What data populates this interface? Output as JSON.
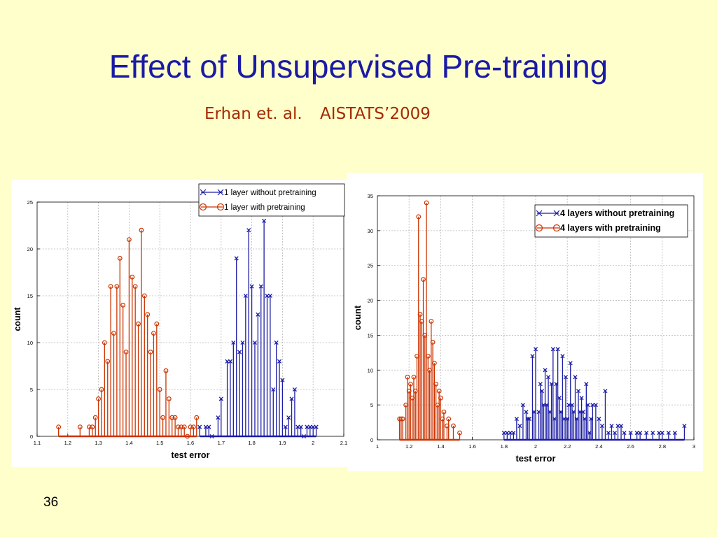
{
  "slide": {
    "title": "Effect of Unsupervised Pre-training",
    "subtitle_authors": "Erhan et. al.",
    "subtitle_venue": "AISTATS’2009",
    "page_number": "36"
  },
  "colors": {
    "blue": "#1c1ca6",
    "red": "#cc3300",
    "title": "#1a1aa6"
  },
  "chart_data": [
    {
      "type": "stem",
      "xlabel": "test error",
      "ylabel": "count",
      "xlim": [
        1.1,
        2.1
      ],
      "ylim": [
        0,
        25
      ],
      "xticks": [
        "1.1",
        "1.2",
        "1.3",
        "1.4",
        "1.5",
        "1.6",
        "1.7",
        "1.8",
        "1.9",
        "2",
        "2.1"
      ],
      "yticks": [
        "0",
        "5",
        "10",
        "15",
        "20",
        "25"
      ],
      "grid": true,
      "legend_position": "top-right",
      "series": [
        {
          "name": "1 layer without pretraining",
          "color": "blue",
          "marker": "x",
          "x": [
            1.63,
            1.65,
            1.66,
            1.67,
            1.69,
            1.7,
            1.72,
            1.73,
            1.74,
            1.75,
            1.76,
            1.77,
            1.78,
            1.79,
            1.8,
            1.81,
            1.82,
            1.83,
            1.84,
            1.85,
            1.86,
            1.87,
            1.88,
            1.89,
            1.9,
            1.91,
            1.92,
            1.93,
            1.94,
            1.95,
            1.96,
            1.97,
            1.98,
            1.99,
            2.0,
            2.01
          ],
          "y": [
            1,
            1,
            1,
            0,
            2,
            4,
            8,
            8,
            10,
            19,
            9,
            10,
            15,
            22,
            16,
            10,
            13,
            16,
            23,
            15,
            15,
            5,
            10,
            8,
            6,
            1,
            2,
            4,
            5,
            1,
            1,
            0,
            1,
            1,
            1,
            1
          ]
        },
        {
          "name": "1 layer with pretraining",
          "color": "red",
          "marker": "o",
          "x": [
            1.17,
            1.24,
            1.27,
            1.28,
            1.29,
            1.3,
            1.31,
            1.32,
            1.33,
            1.34,
            1.35,
            1.36,
            1.37,
            1.38,
            1.39,
            1.4,
            1.41,
            1.42,
            1.43,
            1.44,
            1.45,
            1.46,
            1.47,
            1.48,
            1.49,
            1.5,
            1.51,
            1.52,
            1.53,
            1.54,
            1.55,
            1.56,
            1.57,
            1.58,
            1.59,
            1.6,
            1.61,
            1.62
          ],
          "y": [
            1,
            1,
            1,
            1,
            2,
            4,
            5,
            10,
            8,
            16,
            11,
            16,
            19,
            14,
            9,
            21,
            17,
            16,
            12,
            22,
            15,
            13,
            9,
            11,
            12,
            5,
            2,
            7,
            4,
            2,
            2,
            1,
            1,
            1,
            0,
            1,
            1,
            2
          ]
        }
      ]
    },
    {
      "type": "stem",
      "xlabel": "test error",
      "ylabel": "count",
      "xlim": [
        1.0,
        3.0
      ],
      "ylim": [
        0,
        35
      ],
      "xticks": [
        "1",
        "1.2",
        "1.4",
        "1.6",
        "1.8",
        "2",
        "2.2",
        "2.4",
        "2.6",
        "2.8",
        "3"
      ],
      "yticks": [
        "0",
        "5",
        "10",
        "15",
        "20",
        "25",
        "30",
        "35"
      ],
      "grid": true,
      "legend_position": "top-right",
      "series": [
        {
          "name": "4 layers without pretraining",
          "color": "blue",
          "marker": "x",
          "x": [
            1.8,
            1.82,
            1.84,
            1.86,
            1.88,
            1.9,
            1.92,
            1.94,
            1.95,
            1.96,
            1.98,
            1.99,
            2.0,
            2.02,
            2.03,
            2.04,
            2.05,
            2.06,
            2.07,
            2.08,
            2.09,
            2.1,
            2.11,
            2.12,
            2.13,
            2.14,
            2.15,
            2.16,
            2.17,
            2.18,
            2.19,
            2.2,
            2.21,
            2.22,
            2.23,
            2.24,
            2.25,
            2.26,
            2.27,
            2.28,
            2.29,
            2.3,
            2.31,
            2.32,
            2.33,
            2.34,
            2.35,
            2.36,
            2.38,
            2.4,
            2.42,
            2.44,
            2.46,
            2.48,
            2.5,
            2.52,
            2.54,
            2.56,
            2.6,
            2.64,
            2.66,
            2.7,
            2.74,
            2.78,
            2.8,
            2.84,
            2.88,
            2.94
          ],
          "y": [
            1,
            1,
            1,
            1,
            3,
            2,
            5,
            4,
            3,
            3,
            12,
            4,
            13,
            4,
            8,
            7,
            5,
            10,
            5,
            9,
            4,
            8,
            13,
            3,
            8,
            13,
            6,
            4,
            12,
            3,
            9,
            3,
            5,
            11,
            5,
            4,
            9,
            3,
            7,
            4,
            6,
            4,
            3,
            8,
            5,
            1,
            3,
            5,
            5,
            3,
            2,
            7,
            1,
            2,
            1,
            2,
            2,
            1,
            1,
            1,
            1,
            1,
            1,
            1,
            1,
            1,
            1,
            2
          ]
        },
        {
          "name": "4 layers with pretraining",
          "color": "red",
          "marker": "o",
          "x": [
            1.14,
            1.15,
            1.16,
            1.18,
            1.19,
            1.2,
            1.21,
            1.22,
            1.23,
            1.24,
            1.25,
            1.26,
            1.27,
            1.28,
            1.29,
            1.3,
            1.31,
            1.32,
            1.33,
            1.34,
            1.35,
            1.36,
            1.37,
            1.38,
            1.39,
            1.4,
            1.41,
            1.42,
            1.44,
            1.45,
            1.48,
            1.52
          ],
          "y": [
            3,
            3,
            3,
            5,
            9,
            7,
            8,
            6,
            9,
            7,
            12,
            32,
            18,
            17,
            23,
            15,
            34,
            12,
            10,
            17,
            14,
            11,
            8,
            5,
            7,
            6,
            3,
            4,
            2,
            3,
            2,
            1
          ]
        }
      ]
    }
  ]
}
